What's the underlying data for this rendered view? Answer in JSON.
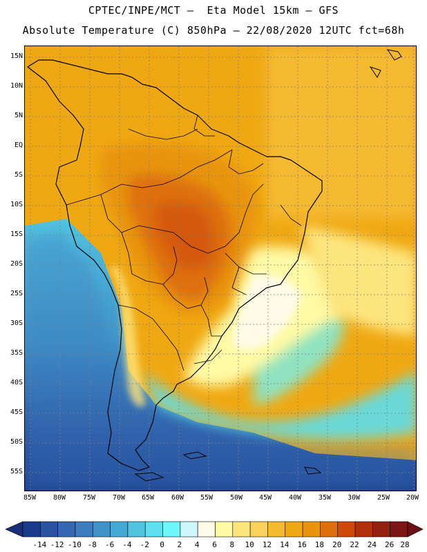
{
  "header": {
    "title_line1": "CPTEC/INPE/MCT –  Eta Model 15km – GFS",
    "title_line2": "Absolute Temperature (C) 850hPa – 22/08/2020 12UTC fct=68h"
  },
  "map": {
    "lat_labels": [
      "15N",
      "10N",
      "5N",
      "EQ",
      "5S",
      "10S",
      "15S",
      "20S",
      "25S",
      "30S",
      "35S",
      "40S",
      "45S",
      "50S",
      "55S"
    ],
    "lon_labels": [
      "85W",
      "80W",
      "75W",
      "70W",
      "65W",
      "60W",
      "55W",
      "50W",
      "45W",
      "40W",
      "35W",
      "30W",
      "25W",
      "20W"
    ]
  },
  "legend": {
    "labels": [
      "-14",
      "-12",
      "-10",
      "-8",
      "-6",
      "-4",
      "-2",
      "0",
      "2",
      "4",
      "6",
      "8",
      "10",
      "12",
      "14",
      "16",
      "18",
      "20",
      "22",
      "24",
      "26",
      "28"
    ],
    "colors": [
      "#1a3a8c",
      "#2a53a0",
      "#3568b0",
      "#3d7cbf",
      "#3f93c9",
      "#45abd5",
      "#52c3e0",
      "#5cdfee",
      "#6ff6fb",
      "#cdf7fb",
      "#fffbe6",
      "#fffaa6",
      "#fde57e",
      "#fbd25c",
      "#f5b932",
      "#f0a812",
      "#e8940d",
      "#de6f0d",
      "#cd4a0a",
      "#b1300b",
      "#932110",
      "#7c1615"
    ]
  }
}
